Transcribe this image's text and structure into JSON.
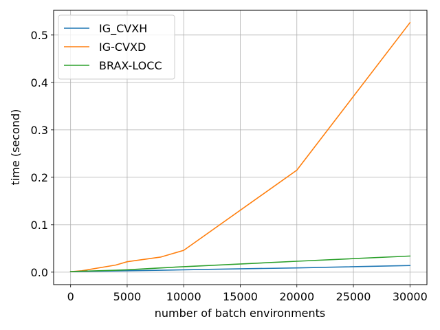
{
  "chart_data": {
    "type": "line",
    "title": "",
    "xlabel": "number of batch environments",
    "ylabel": "time (second)",
    "xlim": [
      -1500,
      31500
    ],
    "ylim": [
      -0.0263,
      0.552
    ],
    "xticks": [
      0,
      5000,
      10000,
      15000,
      20000,
      25000,
      30000
    ],
    "xtick_labels": [
      "0",
      "5000",
      "10000",
      "15000",
      "20000",
      "25000",
      "30000"
    ],
    "yticks": [
      0.0,
      0.1,
      0.2,
      0.3,
      0.4,
      0.5
    ],
    "ytick_labels": [
      "0.0",
      "0.1",
      "0.2",
      "0.3",
      "0.4",
      "0.5"
    ],
    "grid": true,
    "legend_position": "upper-left",
    "series": [
      {
        "name": "IG_CVXH",
        "color": "#1f77b4",
        "x": [
          1,
          1000,
          4000,
          5000,
          8000,
          10000,
          20000,
          30000
        ],
        "y": [
          0.001,
          0.0015,
          0.0025,
          0.003,
          0.004,
          0.005,
          0.009,
          0.014
        ]
      },
      {
        "name": "IG-CVXD",
        "color": "#ff7f0e",
        "x": [
          1,
          1000,
          4000,
          5000,
          8000,
          10000,
          20000,
          30000
        ],
        "y": [
          0.001,
          0.003,
          0.015,
          0.022,
          0.032,
          0.046,
          0.215,
          0.526
        ]
      },
      {
        "name": "BRAX-LOCC",
        "color": "#2ca02c",
        "x": [
          1,
          1000,
          4000,
          5000,
          8000,
          10000,
          20000,
          30000
        ],
        "y": [
          0.001,
          0.002,
          0.004,
          0.005,
          0.009,
          0.0115,
          0.023,
          0.034
        ]
      }
    ]
  }
}
